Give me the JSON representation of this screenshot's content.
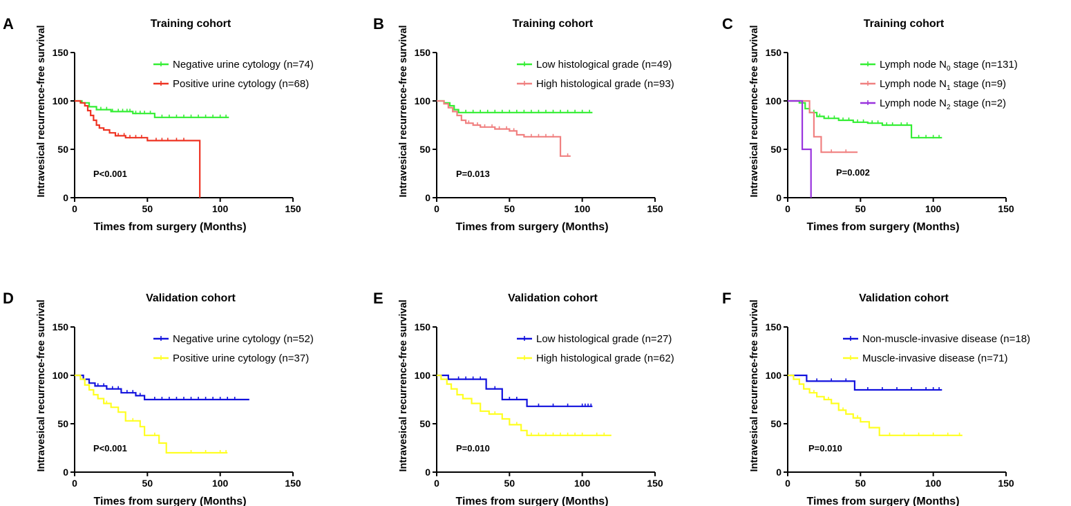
{
  "chart_data": [
    {
      "type": "line",
      "panel": "A",
      "title": "Training cohort",
      "xlabel": "Times from surgery (Months)",
      "ylabel": "Intravesical recurrence-free survival",
      "xlim": [
        0,
        150
      ],
      "ylim": [
        0,
        150
      ],
      "xticks": [
        "0",
        "50",
        "100",
        "150"
      ],
      "yticks": [
        "0",
        "50",
        "100",
        "150"
      ],
      "p_value": "P<0.001",
      "series": [
        {
          "legend_main": "Negative urine cytology (n=74)",
          "legend_sub": "",
          "legend_suffix": "",
          "color": "#33ee33",
          "steps": [
            [
              0,
              100
            ],
            [
              5,
              98
            ],
            [
              10,
              94
            ],
            [
              15,
              91
            ],
            [
              25,
              89
            ],
            [
              40,
              87
            ],
            [
              55,
              83
            ],
            [
              106,
              83
            ]
          ],
          "censors": [
            18,
            22,
            26,
            30,
            33,
            36,
            38,
            42,
            45,
            48,
            52,
            60,
            65,
            70,
            75,
            80,
            85,
            90,
            95,
            100,
            104
          ]
        },
        {
          "legend_main": "Positive urine cytology (n=68)",
          "legend_sub": "",
          "legend_suffix": "",
          "color": "#ee3322",
          "steps": [
            [
              0,
              100
            ],
            [
              4,
              98
            ],
            [
              7,
              95
            ],
            [
              9,
              90
            ],
            [
              11,
              85
            ],
            [
              13,
              80
            ],
            [
              15,
              75
            ],
            [
              17,
              72
            ],
            [
              20,
              70
            ],
            [
              24,
              67
            ],
            [
              28,
              64
            ],
            [
              35,
              62
            ],
            [
              50,
              59
            ],
            [
              86,
              59
            ],
            [
              86,
              0
            ]
          ],
          "censors": [
            30,
            34,
            38,
            42,
            46,
            56,
            60,
            64,
            70,
            75
          ]
        }
      ]
    },
    {
      "type": "line",
      "panel": "B",
      "title": "Training cohort",
      "xlabel": "Times from surgery (Months)",
      "ylabel": "Intravesical recurrence-free survival",
      "xlim": [
        0,
        150
      ],
      "ylim": [
        0,
        150
      ],
      "xticks": [
        "0",
        "50",
        "100",
        "150"
      ],
      "yticks": [
        "0",
        "50",
        "100",
        "150"
      ],
      "p_value": "P=0.013",
      "series": [
        {
          "legend_main": "Low histological grade (n=49)",
          "legend_sub": "",
          "legend_suffix": "",
          "color": "#33ee33",
          "steps": [
            [
              0,
              100
            ],
            [
              5,
              98
            ],
            [
              9,
              95
            ],
            [
              12,
              91
            ],
            [
              15,
              88
            ],
            [
              107,
              88
            ]
          ],
          "censors": [
            20,
            25,
            30,
            35,
            40,
            45,
            50,
            55,
            60,
            65,
            70,
            75,
            80,
            85,
            90,
            95,
            100,
            105
          ]
        },
        {
          "legend_main": "High histological grade (n=93)",
          "legend_sub": "",
          "legend_suffix": "",
          "color": "#f08080",
          "steps": [
            [
              0,
              100
            ],
            [
              5,
              97
            ],
            [
              8,
              93
            ],
            [
              11,
              89
            ],
            [
              14,
              85
            ],
            [
              17,
              80
            ],
            [
              20,
              77
            ],
            [
              25,
              75
            ],
            [
              30,
              73
            ],
            [
              40,
              71
            ],
            [
              50,
              69
            ],
            [
              55,
              65
            ],
            [
              60,
              63
            ],
            [
              85,
              63
            ],
            [
              85,
              43
            ],
            [
              92,
              43
            ]
          ],
          "censors": [
            22,
            28,
            33,
            38,
            43,
            48,
            53,
            65,
            70,
            75,
            80,
            90
          ]
        }
      ]
    },
    {
      "type": "line",
      "panel": "C",
      "title": "Training cohort",
      "xlabel": "Times from surgery (Months)",
      "ylabel": "Intravesical recurrence-free survival",
      "xlim": [
        0,
        150
      ],
      "ylim": [
        0,
        150
      ],
      "xticks": [
        "0",
        "50",
        "100",
        "150"
      ],
      "yticks": [
        "0",
        "50",
        "100",
        "150"
      ],
      "p_value": "P=0.002",
      "series": [
        {
          "legend_main": "Lymph node N",
          "legend_sub": "0",
          "legend_suffix": " stage (n=131)",
          "color": "#33ee33",
          "steps": [
            [
              0,
              100
            ],
            [
              8,
              98
            ],
            [
              12,
              92
            ],
            [
              15,
              88
            ],
            [
              20,
              84
            ],
            [
              25,
              82
            ],
            [
              35,
              80
            ],
            [
              45,
              78
            ],
            [
              55,
              77
            ],
            [
              65,
              75
            ],
            [
              85,
              75
            ],
            [
              85,
              62
            ],
            [
              106,
              62
            ]
          ],
          "censors": [
            18,
            22,
            28,
            32,
            38,
            42,
            48,
            52,
            58,
            62,
            68,
            72,
            78,
            82,
            90,
            95,
            100,
            104
          ]
        },
        {
          "legend_main": "Lymph node N",
          "legend_sub": "1",
          "legend_suffix": " stage (n=9)",
          "color": "#f08080",
          "steps": [
            [
              0,
              100
            ],
            [
              15,
              100
            ],
            [
              15,
              88
            ],
            [
              18,
              88
            ],
            [
              18,
              63
            ],
            [
              23,
              63
            ],
            [
              23,
              47
            ],
            [
              48,
              47
            ]
          ],
          "censors": [
            30,
            40
          ]
        },
        {
          "legend_main": "Lymph node N",
          "legend_sub": "2",
          "legend_suffix": " stage (n=2)",
          "color": "#9933dd",
          "steps": [
            [
              0,
              100
            ],
            [
              10,
              100
            ],
            [
              10,
              50
            ],
            [
              16,
              50
            ],
            [
              16,
              0
            ]
          ],
          "censors": []
        }
      ]
    },
    {
      "type": "line",
      "panel": "D",
      "title": "Validation cohort",
      "xlabel": "Times from surgery (Months)",
      "ylabel": "Intravesical recurrence-free survival",
      "xlim": [
        0,
        150
      ],
      "ylim": [
        0,
        150
      ],
      "xticks": [
        "0",
        "50",
        "100",
        "150"
      ],
      "yticks": [
        "0",
        "50",
        "100",
        "150"
      ],
      "p_value": "P<0.001",
      "series": [
        {
          "legend_main": "Negative urine cytology (n=52)",
          "legend_sub": "",
          "legend_suffix": "",
          "color": "#1111dd",
          "steps": [
            [
              0,
              100
            ],
            [
              6,
              96
            ],
            [
              10,
              92
            ],
            [
              14,
              89
            ],
            [
              22,
              86
            ],
            [
              32,
              82
            ],
            [
              42,
              79
            ],
            [
              48,
              75
            ],
            [
              120,
              75
            ]
          ],
          "censors": [
            16,
            20,
            26,
            30,
            36,
            40,
            45,
            55,
            60,
            65,
            70,
            75,
            80,
            85,
            90,
            95,
            100,
            105,
            110
          ]
        },
        {
          "legend_main": "Positive urine cytology (n=37)",
          "legend_sub": "",
          "legend_suffix": "",
          "color": "#ffff22",
          "steps": [
            [
              0,
              100
            ],
            [
              4,
              96
            ],
            [
              7,
              90
            ],
            [
              10,
              85
            ],
            [
              13,
              80
            ],
            [
              16,
              76
            ],
            [
              20,
              71
            ],
            [
              25,
              67
            ],
            [
              30,
              62
            ],
            [
              35,
              53
            ],
            [
              45,
              47
            ],
            [
              48,
              38
            ],
            [
              58,
              30
            ],
            [
              63,
              20
            ],
            [
              105,
              20
            ]
          ],
          "censors": [
            22,
            40,
            55,
            80,
            90,
            100,
            104
          ]
        }
      ]
    },
    {
      "type": "line",
      "panel": "E",
      "title": "Validation cohort",
      "xlabel": "Times from surgery (Months)",
      "ylabel": "Intravesical recurrence-free survival",
      "xlim": [
        0,
        150
      ],
      "ylim": [
        0,
        150
      ],
      "xticks": [
        "0",
        "50",
        "100",
        "150"
      ],
      "yticks": [
        "0",
        "50",
        "100",
        "150"
      ],
      "p_value": "P=0.010",
      "series": [
        {
          "legend_main": "Low histological grade (n=27)",
          "legend_sub": "",
          "legend_suffix": "",
          "color": "#1111dd",
          "steps": [
            [
              0,
              100
            ],
            [
              8,
              96
            ],
            [
              34,
              96
            ],
            [
              34,
              86
            ],
            [
              45,
              86
            ],
            [
              45,
              75
            ],
            [
              62,
              75
            ],
            [
              62,
              68
            ],
            [
              107,
              68
            ]
          ],
          "censors": [
            15,
            20,
            25,
            30,
            40,
            50,
            55,
            70,
            80,
            90,
            100,
            102,
            104,
            106
          ]
        },
        {
          "legend_main": "High histological grade (n=62)",
          "legend_sub": "",
          "legend_suffix": "",
          "color": "#ffff22",
          "steps": [
            [
              0,
              100
            ],
            [
              3,
              96
            ],
            [
              7,
              91
            ],
            [
              10,
              86
            ],
            [
              14,
              80
            ],
            [
              18,
              76
            ],
            [
              24,
              71
            ],
            [
              30,
              63
            ],
            [
              36,
              60
            ],
            [
              45,
              55
            ],
            [
              50,
              49
            ],
            [
              58,
              43
            ],
            [
              62,
              38
            ],
            [
              120,
              38
            ]
          ],
          "censors": [
            40,
            55,
            65,
            70,
            75,
            80,
            85,
            90,
            95,
            100,
            110,
            115
          ]
        }
      ]
    },
    {
      "type": "line",
      "panel": "F",
      "title": "Validation cohort",
      "xlabel": "Times from surgery (Months)",
      "ylabel": "Intravesical recurrence-free survival",
      "xlim": [
        0,
        150
      ],
      "ylim": [
        0,
        150
      ],
      "xticks": [
        "0",
        "50",
        "100",
        "150"
      ],
      "yticks": [
        "0",
        "50",
        "100",
        "150"
      ],
      "p_value": "P=0.010",
      "series": [
        {
          "legend_main": "Non-muscle-invasive disease (n=18)",
          "legend_sub": "",
          "legend_suffix": "",
          "color": "#1111dd",
          "steps": [
            [
              0,
              100
            ],
            [
              13,
              100
            ],
            [
              13,
              94
            ],
            [
              46,
              94
            ],
            [
              46,
              85
            ],
            [
              106,
              85
            ]
          ],
          "censors": [
            20,
            30,
            40,
            55,
            65,
            75,
            85,
            95,
            100,
            104
          ]
        },
        {
          "legend_main": "Muscle-invasive disease (n=71)",
          "legend_sub": "",
          "legend_suffix": "",
          "color": "#ffff22",
          "steps": [
            [
              0,
              100
            ],
            [
              4,
              96
            ],
            [
              8,
              91
            ],
            [
              11,
              86
            ],
            [
              15,
              82
            ],
            [
              20,
              78
            ],
            [
              25,
              75
            ],
            [
              30,
              71
            ],
            [
              35,
              64
            ],
            [
              40,
              60
            ],
            [
              45,
              56
            ],
            [
              50,
              52
            ],
            [
              56,
              46
            ],
            [
              63,
              38
            ],
            [
              120,
              38
            ]
          ],
          "censors": [
            18,
            28,
            38,
            48,
            70,
            80,
            90,
            100,
            110,
            118
          ]
        }
      ]
    }
  ]
}
